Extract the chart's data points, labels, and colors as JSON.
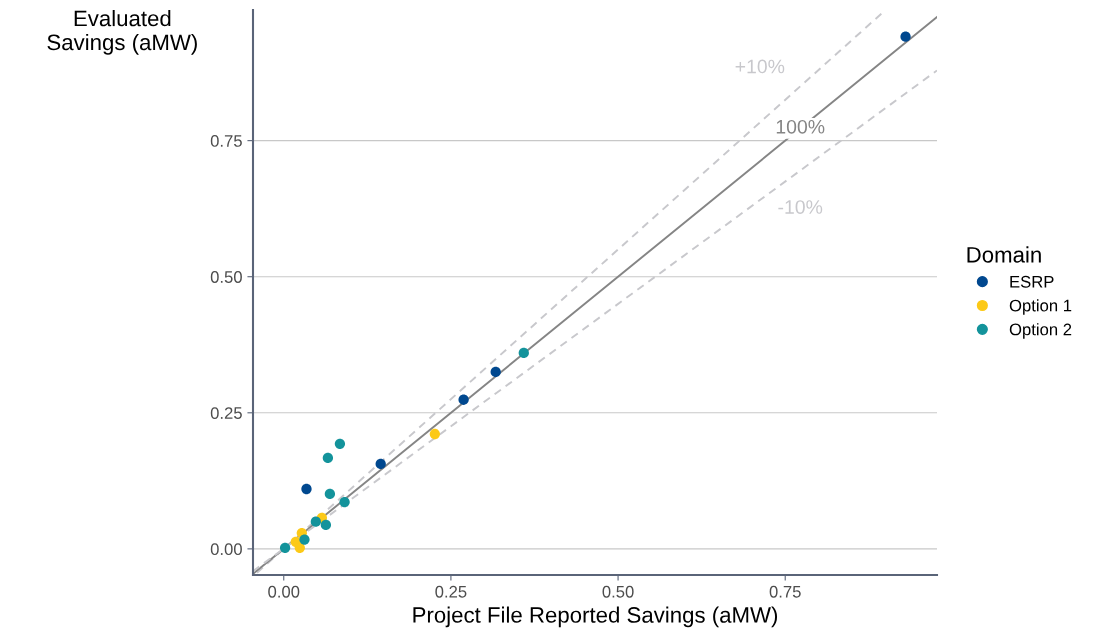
{
  "chart_data": {
    "type": "scatter",
    "xlabel": "Project File Reported Savings (aMW)",
    "ylabel": "Evaluated\nSavings (aMW)",
    "legend_title": "Domain",
    "legend": "right",
    "grid": "y",
    "marker": "circle",
    "xlim": [
      -0.046,
      0.977
    ],
    "ylim": [
      -0.048,
      0.99
    ],
    "xticks": [
      {
        "value": 0,
        "label": "0.00"
      },
      {
        "value": 0.25,
        "label": "0.25"
      },
      {
        "value": 0.5,
        "label": "0.50"
      },
      {
        "value": 0.75,
        "label": "0.75"
      }
    ],
    "yticks": [
      {
        "value": 0,
        "label": "0.00"
      },
      {
        "value": 0.25,
        "label": "0.25"
      },
      {
        "value": 0.5,
        "label": "0.50"
      },
      {
        "value": 0.75,
        "label": "0.75"
      }
    ],
    "series": [
      {
        "name": "ESRP",
        "color": "#00488f",
        "x": [
          0.93,
          0.317,
          0.269,
          0.145,
          0.034
        ],
        "values": [
          0.941,
          0.325,
          0.274,
          0.156,
          0.11
        ]
      },
      {
        "name": "Option 1",
        "color": "#fcc917",
        "x": [
          0.226,
          0.057,
          0.027,
          0.018,
          0.024
        ],
        "values": [
          0.211,
          0.057,
          0.029,
          0.013,
          0.002
        ]
      },
      {
        "name": "Option 2",
        "color": "#13939b",
        "x": [
          0.359,
          0.084,
          0.066,
          0.069,
          0.091,
          0.063,
          0.048,
          0.031,
          0.002
        ],
        "values": [
          0.36,
          0.193,
          0.167,
          0.101,
          0.086,
          0.044,
          0.05,
          0.017,
          0.002
        ]
      },
      {
        "name": "+10%",
        "type": "line",
        "marker": "none",
        "line_style": "dashed",
        "color": "#c8c8cc",
        "x": [
          -0.04,
          0.9
        ],
        "values": [
          -0.044,
          0.99
        ]
      },
      {
        "name": "100%",
        "type": "line",
        "marker": "none",
        "line_style": "solid",
        "color": "#858585",
        "x": [
          -0.046,
          0.977
        ],
        "values": [
          -0.046,
          0.977
        ]
      },
      {
        "name": "-10%",
        "type": "line",
        "marker": "none",
        "line_style": "dashed",
        "color": "#c8c8cc",
        "x": [
          -0.046,
          0.977
        ],
        "values": [
          -0.041,
          0.879
        ]
      }
    ]
  }
}
